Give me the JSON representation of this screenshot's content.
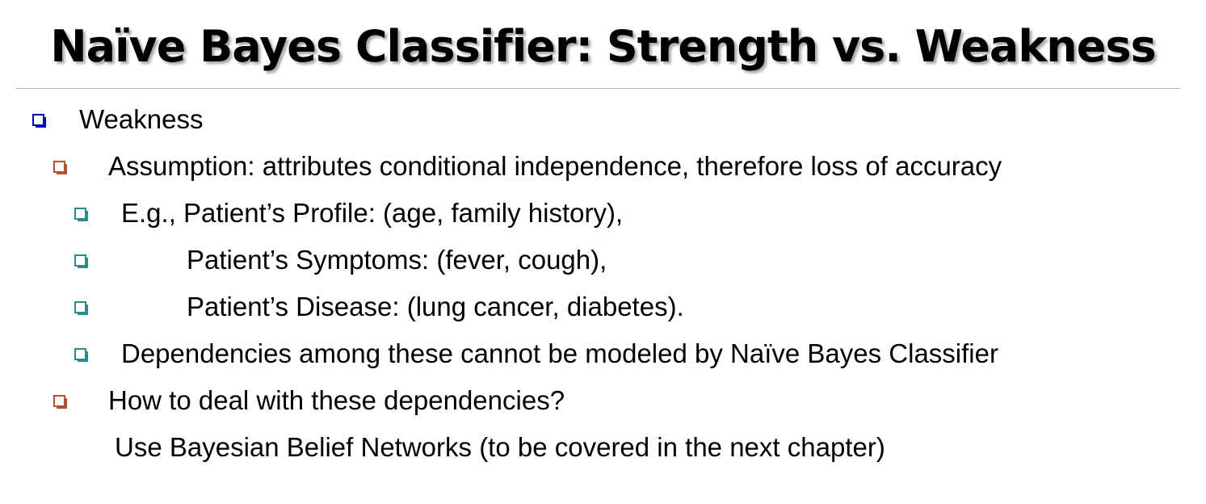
{
  "slide": {
    "title": "Naïve Bayes Classifier: Strength vs. Weakness",
    "bullets": [
      {
        "level": 1,
        "bullet_icon": "square-bullet-blue",
        "text": "Weakness"
      },
      {
        "level": 2,
        "bullet_icon": "square-bullet-brown",
        "text": "Assumption: attributes conditional independence, therefore loss of accuracy"
      },
      {
        "level": 3,
        "bullet_icon": "square-bullet-teal",
        "text": "E.g., Patient’s Profile: (age, family history),"
      },
      {
        "level": 3,
        "bullet_icon": "square-bullet-teal",
        "text": "Patient’s Symptoms:  (fever, cough),"
      },
      {
        "level": 3,
        "bullet_icon": "square-bullet-teal",
        "text": "Patient’s Disease: (lung cancer, diabetes)."
      },
      {
        "level": 3,
        "bullet_icon": "square-bullet-teal",
        "text": "Dependencies among these cannot be modeled by Naïve Bayes Classifier"
      },
      {
        "level": 2,
        "bullet_icon": "square-bullet-brown",
        "text": "How to deal with these dependencies?"
      },
      {
        "level": 2,
        "bullet_icon": null,
        "text": "Use Bayesian Belief Networks (to be covered in the next chapter)"
      }
    ]
  },
  "colors": {
    "level1_bullet": "#0000c0",
    "level2_bullet": "#b5532d",
    "level3_bullet": "#2e8b8b",
    "divider": "#b7b7b7"
  }
}
